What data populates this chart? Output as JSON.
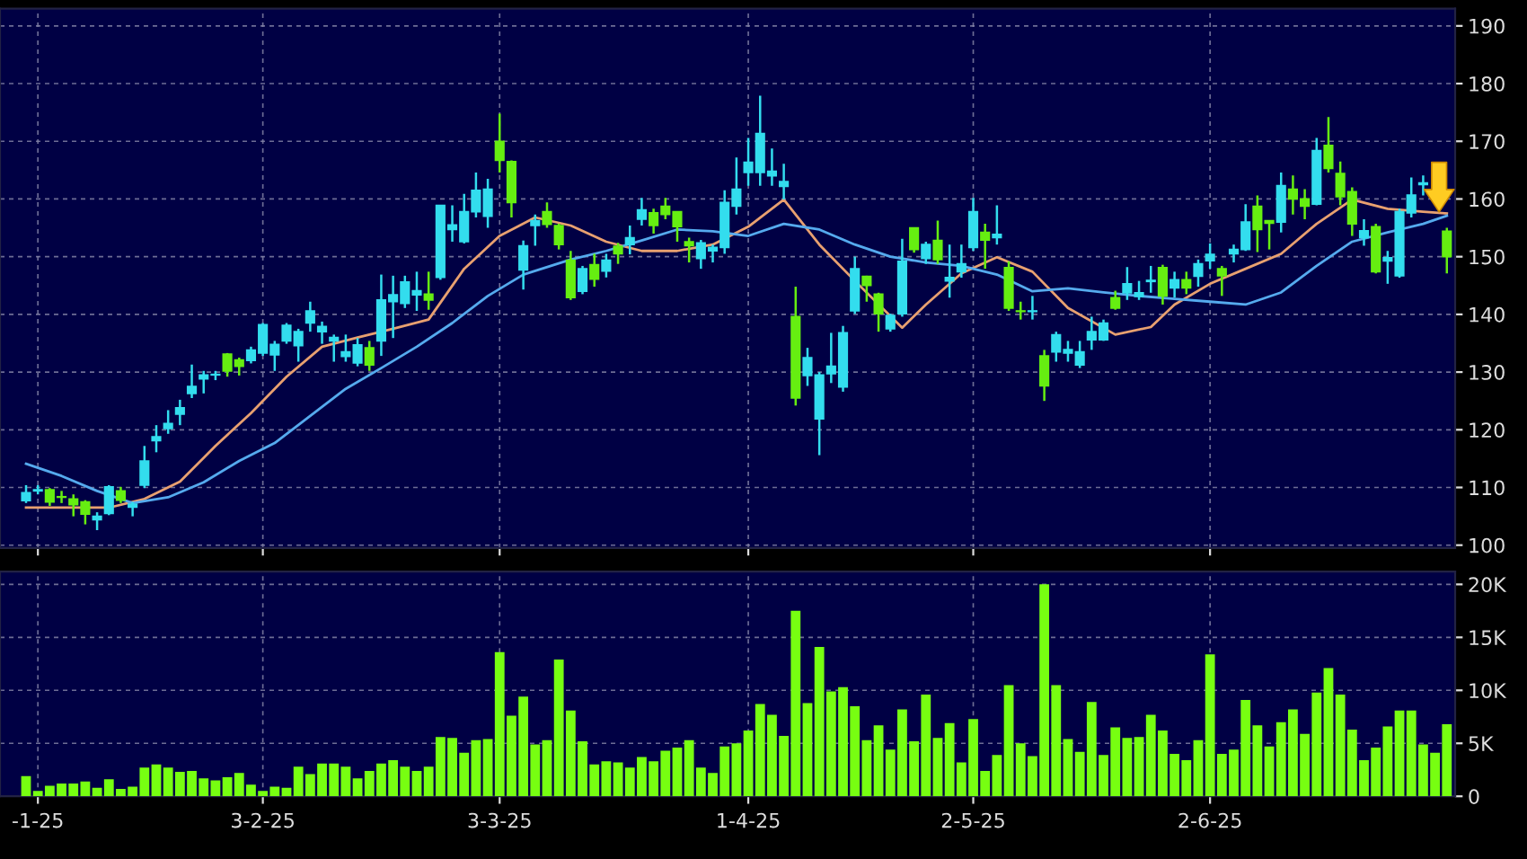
{
  "chart_data": [
    {
      "type": "candlestick",
      "categories": [
        null,
        null,
        null,
        null,
        null,
        null,
        null,
        null,
        null,
        null,
        null,
        null,
        null,
        null,
        null,
        null,
        null,
        null,
        null,
        null,
        null,
        null,
        null,
        null,
        null,
        null,
        null,
        null,
        null,
        null,
        null,
        null,
        null,
        null,
        null,
        null,
        null,
        null,
        null,
        null,
        null,
        null,
        null,
        null,
        null,
        null,
        null,
        null,
        null,
        null,
        null,
        null,
        null,
        null,
        null,
        null,
        null,
        null,
        null,
        null,
        null,
        null,
        null,
        null,
        null,
        null,
        null,
        null,
        null,
        null,
        null,
        null,
        null,
        null,
        null,
        null,
        null,
        null,
        null,
        null,
        null,
        null,
        null,
        null,
        null,
        null,
        null,
        null,
        null,
        null,
        null,
        null,
        null,
        null,
        null,
        null,
        null,
        null,
        null,
        null,
        null,
        null,
        null,
        null,
        null,
        null,
        null,
        null,
        null,
        null,
        null,
        null,
        null,
        null,
        null,
        null,
        null,
        null,
        null,
        null,
        null
      ],
      "ohlc": [
        [
          107.7,
          110.4,
          107.3,
          109.1
        ],
        [
          109.4,
          110.4,
          108.8,
          109.6
        ],
        [
          109.6,
          109.9,
          106.8,
          107.5
        ],
        [
          108.4,
          109.4,
          107.3,
          108.3
        ],
        [
          108.0,
          108.8,
          105.0,
          107.0
        ],
        [
          107.5,
          107.8,
          103.6,
          105.4
        ],
        [
          104.4,
          105.7,
          102.6,
          105.0
        ],
        [
          105.5,
          110.4,
          105.2,
          110.1
        ],
        [
          109.4,
          110.1,
          107.3,
          107.8
        ],
        [
          106.6,
          107.5,
          105.0,
          107.1
        ],
        [
          110.4,
          117.2,
          109.9,
          114.6
        ],
        [
          118.1,
          120.8,
          116.1,
          118.8
        ],
        [
          120.2,
          123.4,
          119.3,
          121.1
        ],
        [
          122.7,
          125.2,
          120.8,
          123.8
        ],
        [
          126.3,
          131.3,
          125.5,
          127.5
        ],
        [
          128.8,
          130.2,
          126.3,
          129.5
        ],
        [
          129.5,
          130.2,
          128.6,
          129.6
        ],
        [
          133.1,
          133.3,
          129.2,
          130.2
        ],
        [
          132.1,
          132.5,
          129.4,
          131.0
        ],
        [
          132.0,
          134.4,
          131.5,
          133.8
        ],
        [
          133.3,
          138.5,
          132.8,
          138.2
        ],
        [
          133.0,
          135.4,
          130.2,
          134.8
        ],
        [
          135.4,
          138.5,
          134.9,
          138.1
        ],
        [
          134.6,
          137.5,
          131.8,
          137.0
        ],
        [
          138.5,
          142.2,
          137.0,
          140.6
        ],
        [
          137.0,
          138.75,
          134.9,
          137.9
        ],
        [
          135.4,
          136.5,
          131.8,
          136.0
        ],
        [
          132.7,
          136.5,
          131.8,
          133.5
        ],
        [
          131.6,
          135.9,
          131.0,
          134.7
        ],
        [
          134.2,
          135.4,
          130.2,
          131.25
        ],
        [
          135.4,
          146.9,
          132.8,
          142.5
        ],
        [
          142.2,
          146.7,
          135.9,
          143.4
        ],
        [
          141.9,
          146.7,
          141.1,
          145.6
        ],
        [
          143.4,
          147.4,
          140.6,
          144.1
        ],
        [
          143.5,
          147.4,
          140.8,
          142.5
        ],
        [
          146.4,
          158.9,
          146.0,
          158.9
        ],
        [
          154.7,
          158.9,
          152.6,
          155.5
        ],
        [
          152.6,
          160.9,
          152.3,
          157.8
        ],
        [
          157.8,
          164.6,
          156.8,
          161.5
        ],
        [
          157.0,
          163.5,
          155.0,
          161.7
        ],
        [
          170.0,
          174.8,
          164.6,
          166.7
        ],
        [
          166.5,
          166.7,
          156.8,
          159.4
        ],
        [
          147.7,
          152.8,
          144.3,
          151.9
        ],
        [
          155.4,
          157.3,
          151.9,
          156.25
        ],
        [
          157.8,
          159.4,
          155.0,
          155.6
        ],
        [
          155.4,
          155.7,
          151.25,
          152.1
        ],
        [
          149.4,
          151.0,
          142.5,
          142.9
        ],
        [
          144.0,
          148.4,
          143.5,
          147.9
        ],
        [
          148.6,
          150.5,
          144.8,
          146.1
        ],
        [
          147.5,
          150.5,
          146.4,
          149.4
        ],
        [
          151.8,
          152.4,
          148.75,
          150.5
        ],
        [
          152.1,
          155.4,
          150.4,
          153.3
        ],
        [
          156.5,
          160.2,
          155.4,
          158.1
        ],
        [
          157.6,
          158.3,
          154.0,
          155.4
        ],
        [
          158.75,
          160.2,
          156.5,
          157.3
        ],
        [
          157.8,
          157.8,
          152.6,
          155.2
        ],
        [
          152.6,
          153.3,
          149.0,
          151.9
        ],
        [
          149.7,
          152.9,
          147.9,
          152.4
        ],
        [
          151.0,
          152.1,
          149.0,
          151.6
        ],
        [
          151.6,
          161.5,
          150.5,
          159.4
        ],
        [
          158.75,
          167.2,
          157.3,
          161.7
        ],
        [
          164.6,
          170.6,
          162.3,
          166.35
        ],
        [
          164.6,
          177.9,
          162.3,
          171.35
        ],
        [
          164.0,
          168.75,
          162.3,
          164.8
        ],
        [
          162.2,
          166.1,
          159.9,
          163.0
        ],
        [
          139.6,
          144.8,
          124.2,
          125.5
        ],
        [
          129.4,
          134.2,
          127.6,
          132.5
        ],
        [
          121.9,
          130.0,
          115.6,
          129.5
        ],
        [
          129.7,
          136.8,
          128.1,
          131.0
        ],
        [
          127.4,
          138.0,
          126.6,
          136.8
        ],
        [
          140.6,
          150.0,
          140.1,
          147.9
        ],
        [
          146.6,
          146.7,
          142.2,
          145.0
        ],
        [
          143.5,
          143.75,
          137.0,
          140.1
        ],
        [
          137.5,
          140.1,
          137.0,
          139.8
        ],
        [
          140.1,
          153.1,
          139.6,
          149.2
        ],
        [
          155.0,
          155.0,
          150.7,
          151.25
        ],
        [
          149.7,
          152.6,
          148.75,
          152.1
        ],
        [
          152.8,
          156.25,
          148.75,
          149.5
        ],
        [
          145.8,
          152.1,
          142.9,
          146.4
        ],
        [
          147.4,
          152.1,
          146.35,
          148.75
        ],
        [
          151.6,
          160.2,
          151.0,
          157.8
        ],
        [
          154.2,
          155.7,
          147.9,
          152.9
        ],
        [
          153.3,
          158.9,
          152.1,
          153.85
        ],
        [
          148.1,
          149.2,
          140.6,
          141.1
        ],
        [
          140.6,
          142.2,
          139.1,
          140.5
        ],
        [
          140.5,
          143.2,
          139.1,
          140.6
        ],
        [
          132.8,
          133.85,
          125.0,
          127.6
        ],
        [
          133.5,
          137.0,
          131.8,
          136.45
        ],
        [
          133.3,
          135.4,
          131.8,
          133.9
        ],
        [
          131.25,
          135.4,
          130.7,
          133.5
        ],
        [
          135.6,
          139.6,
          133.85,
          137.0
        ],
        [
          135.6,
          139.1,
          135.4,
          138.5
        ],
        [
          142.9,
          144.1,
          140.8,
          141.1
        ],
        [
          143.75,
          148.2,
          142.5,
          145.3
        ],
        [
          143.1,
          145.8,
          142.5,
          143.75
        ],
        [
          145.7,
          148.4,
          143.75,
          145.9
        ],
        [
          148.1,
          148.6,
          141.7,
          143.2
        ],
        [
          144.6,
          147.4,
          142.9,
          146.0
        ],
        [
          146.0,
          147.4,
          143.5,
          144.6
        ],
        [
          146.6,
          149.5,
          144.8,
          148.75
        ],
        [
          149.3,
          152.3,
          147.9,
          150.4
        ],
        [
          147.9,
          148.4,
          143.2,
          146.7
        ],
        [
          150.5,
          152.1,
          149.0,
          151.25
        ],
        [
          151.25,
          159.1,
          151.0,
          156.0
        ],
        [
          158.75,
          160.6,
          150.8,
          154.7
        ],
        [
          156.25,
          156.25,
          151.25,
          155.8
        ],
        [
          156.0,
          164.6,
          154.2,
          162.3
        ],
        [
          161.7,
          164.1,
          157.3,
          160.0
        ],
        [
          160.0,
          161.7,
          156.5,
          158.75
        ],
        [
          159.1,
          170.6,
          158.9,
          168.4
        ],
        [
          169.3,
          174.2,
          164.6,
          165.3
        ],
        [
          164.4,
          166.5,
          158.9,
          160.4
        ],
        [
          161.25,
          162.0,
          153.6,
          155.7
        ],
        [
          153.3,
          156.5,
          151.9,
          154.5
        ],
        [
          155.2,
          155.7,
          147.1,
          147.4
        ],
        [
          149.25,
          151.0,
          145.3,
          149.8
        ],
        [
          146.7,
          158.3,
          146.35,
          157.8
        ],
        [
          157.6,
          163.75,
          156.8,
          160.7
        ],
        [
          162.5,
          164.1,
          160.6,
          162.8
        ],
        null,
        [
          154.4,
          155.0,
          147.1,
          150.0
        ]
      ],
      "colors": [
        "#33ddee",
        "#33ddee",
        "#66ee11",
        "#66ee11",
        "#66ee11",
        "#66ee11",
        "#33ddee",
        "#33ddee",
        "#66ee11",
        "#33ddee",
        "#33ddee",
        "#33ddee",
        "#33ddee",
        "#33ddee",
        "#33ddee",
        "#33ddee",
        "#33ddee",
        "#66ee11",
        "#66ee11",
        "#33ddee",
        "#33ddee",
        "#33ddee",
        "#33ddee",
        "#33ddee",
        "#33ddee",
        "#33ddee",
        "#33ddee",
        "#33ddee",
        "#33ddee",
        "#66ee11",
        "#33ddee",
        "#33ddee",
        "#33ddee",
        "#33ddee",
        "#66ee11",
        "#33ddee",
        "#33ddee",
        "#33ddee",
        "#33ddee",
        "#33ddee",
        "#66ee11",
        "#66ee11",
        "#33ddee",
        "#33ddee",
        "#66ee11",
        "#66ee11",
        "#66ee11",
        "#33ddee",
        "#66ee11",
        "#33ddee",
        "#66ee11",
        "#33ddee",
        "#33ddee",
        "#66ee11",
        "#66ee11",
        "#66ee11",
        "#66ee11",
        "#33ddee",
        "#33ddee",
        "#33ddee",
        "#33ddee",
        "#33ddee",
        "#33ddee",
        "#33ddee",
        "#33ddee",
        "#66ee11",
        "#33ddee",
        "#33ddee",
        "#33ddee",
        "#33ddee",
        "#33ddee",
        "#66ee11",
        "#66ee11",
        "#33ddee",
        "#33ddee",
        "#66ee11",
        "#33ddee",
        "#66ee11",
        "#33ddee",
        "#33ddee",
        "#33ddee",
        "#66ee11",
        "#33ddee",
        "#66ee11",
        "#66ee11",
        "#33ddee",
        "#66ee11",
        "#33ddee",
        "#33ddee",
        "#33ddee",
        "#33ddee",
        "#33ddee",
        "#66ee11",
        "#33ddee",
        "#33ddee",
        "#33ddee",
        "#66ee11",
        "#33ddee",
        "#66ee11",
        "#33ddee",
        "#33ddee",
        "#66ee11",
        "#33ddee",
        "#33ddee",
        "#66ee11",
        "#66ee11",
        "#33ddee",
        "#66ee11",
        "#66ee11",
        "#33ddee",
        "#66ee11",
        "#66ee11",
        "#66ee11",
        "#33ddee",
        "#66ee11",
        "#33ddee",
        "#33ddee",
        "#33ddee",
        "#33ddee",
        null,
        "#66ee11"
      ],
      "series": [
        {
          "type": "line",
          "color": "#e8a070",
          "values": [
            106.5,
            null,
            null,
            null,
            null,
            null,
            null,
            106.5,
            null,
            null,
            108.0,
            null,
            null,
            111.0,
            null,
            null,
            117.2,
            null,
            null,
            122.9,
            null,
            null,
            129.2,
            null,
            null,
            134.4,
            null,
            null,
            136.0,
            null,
            null,
            137.5,
            null,
            null,
            139.1,
            null,
            null,
            147.9,
            null,
            null,
            153.6,
            null,
            null,
            156.8,
            null,
            null,
            155.4,
            null,
            null,
            152.6,
            null,
            null,
            151.0,
            null,
            null,
            151.0,
            null,
            null,
            152.1,
            null,
            null,
            155.2,
            null,
            null,
            159.9,
            null,
            null,
            152.1,
            null,
            null,
            145.8,
            null,
            null,
            null,
            137.7,
            null,
            141.7,
            null,
            null,
            147.1,
            null,
            null,
            149.9,
            null,
            null,
            147.4,
            null,
            null,
            141.1,
            null,
            null,
            null,
            136.5,
            null,
            null,
            137.8,
            null,
            141.7,
            null,
            null,
            145.3,
            null,
            null,
            147.9,
            null,
            null,
            150.5,
            null,
            null,
            155.7,
            null,
            null,
            159.9,
            null,
            null,
            158.3,
            null,
            null,
            157.8,
            null,
            157.5
          ]
        },
        {
          "type": "line",
          "color": "#55aaee",
          "values": [
            114.1,
            null,
            null,
            112.0,
            null,
            null,
            109.4,
            null,
            null,
            107.3,
            null,
            null,
            108.3,
            null,
            null,
            110.9,
            null,
            null,
            114.6,
            null,
            null,
            117.7,
            null,
            null,
            122.4,
            null,
            null,
            127.1,
            null,
            null,
            130.7,
            null,
            null,
            134.4,
            null,
            null,
            138.5,
            null,
            null,
            143.2,
            null,
            null,
            146.9,
            null,
            null,
            null,
            149.5,
            null,
            null,
            151.0,
            null,
            null,
            152.8,
            null,
            null,
            154.7,
            null,
            null,
            154.4,
            null,
            null,
            153.6,
            null,
            null,
            155.7,
            null,
            null,
            154.7,
            null,
            null,
            152.1,
            null,
            null,
            150.0,
            null,
            null,
            149.0,
            null,
            null,
            148.4,
            null,
            null,
            146.9,
            null,
            null,
            144.0,
            null,
            null,
            144.5,
            null,
            null,
            143.8,
            null,
            null,
            143.2,
            null,
            null,
            142.7,
            null,
            null,
            142.2,
            null,
            null,
            141.7,
            null,
            null,
            143.8,
            null,
            null,
            148.4,
            null,
            null,
            152.6,
            null,
            null,
            154.2,
            null,
            null,
            155.7,
            null,
            157.1
          ]
        }
      ],
      "ylim": [
        99.5,
        193
      ],
      "yticks": [
        100,
        110,
        120,
        130,
        140,
        150,
        160,
        170,
        180,
        190
      ],
      "grid": true,
      "tick_labels": "y"
    },
    {
      "type": "bar",
      "categories": [
        null,
        "-1-25",
        null,
        null,
        null,
        null,
        null,
        null,
        null,
        null,
        null,
        null,
        null,
        null,
        null,
        null,
        null,
        null,
        null,
        null,
        "3-2-25",
        null,
        null,
        null,
        null,
        null,
        null,
        null,
        null,
        null,
        null,
        null,
        null,
        null,
        null,
        null,
        null,
        null,
        null,
        null,
        "3-3-25",
        null,
        null,
        null,
        null,
        null,
        null,
        null,
        null,
        null,
        null,
        null,
        null,
        null,
        null,
        null,
        null,
        null,
        null,
        null,
        null,
        "1-4-25",
        null,
        null,
        null,
        null,
        null,
        null,
        null,
        null,
        null,
        null,
        null,
        null,
        null,
        null,
        null,
        null,
        null,
        null,
        "2-5-25",
        null,
        null,
        null,
        null,
        null,
        null,
        null,
        null,
        null,
        null,
        null,
        null,
        null,
        null,
        null,
        null,
        null,
        null,
        null,
        "2-6-25",
        null,
        null,
        null,
        null,
        null,
        null,
        null,
        null,
        null,
        null,
        null,
        null,
        null,
        null,
        null,
        null,
        null,
        null,
        null,
        null
      ],
      "values": [
        1.9,
        0.5,
        1.0,
        1.2,
        1.2,
        1.4,
        0.8,
        1.6,
        0.7,
        0.9,
        2.7,
        3.0,
        2.7,
        2.3,
        2.4,
        1.7,
        1.5,
        1.8,
        2.2,
        1.1,
        0.5,
        0.9,
        0.8,
        2.8,
        2.1,
        3.1,
        3.1,
        2.8,
        1.7,
        2.4,
        3.1,
        3.4,
        2.8,
        2.4,
        2.8,
        5.6,
        5.5,
        4.1,
        5.3,
        5.4,
        13.6,
        7.6,
        9.4,
        4.9,
        5.3,
        12.9,
        8.1,
        5.2,
        3.0,
        3.3,
        3.2,
        2.7,
        3.7,
        3.3,
        4.3,
        4.6,
        5.3,
        2.7,
        2.2,
        4.7,
        5.0,
        6.2,
        8.7,
        7.7,
        5.7,
        17.5,
        8.8,
        14.1,
        9.9,
        10.3,
        8.5,
        5.3,
        6.7,
        4.4,
        8.2,
        5.2,
        9.6,
        5.5,
        6.9,
        3.2,
        7.3,
        2.4,
        3.9,
        10.5,
        5.0,
        3.8,
        20.0,
        10.5,
        5.4,
        4.2,
        8.9,
        3.9,
        6.5,
        5.5,
        5.6,
        7.7,
        6.2,
        4.0,
        3.4,
        5.3,
        13.4,
        4.0,
        4.4,
        9.1,
        6.7,
        4.7,
        7.0,
        8.2,
        5.9,
        9.8,
        12.1,
        9.6,
        6.3,
        3.4,
        4.6,
        6.6,
        8.1,
        8.1,
        4.9,
        4.1,
        6.8
      ],
      "color": "#77ff11",
      "ylim": [
        0,
        21.2
      ],
      "yticks": [
        0,
        {
          "value": 5,
          "label": "5K"
        },
        {
          "value": 10,
          "label": "10K"
        },
        {
          "value": 15,
          "label": "15K"
        },
        {
          "value": 20,
          "label": "20K"
        }
      ],
      "grid": true
    }
  ]
}
